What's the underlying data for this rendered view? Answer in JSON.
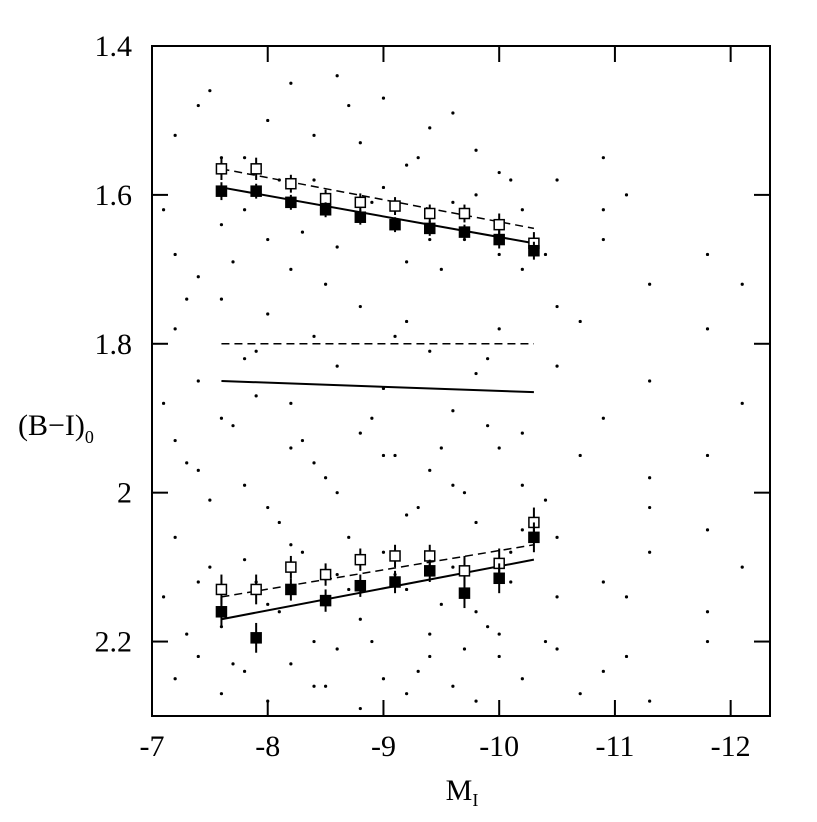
{
  "chart_data": {
    "type": "scatter",
    "xlabel": "M",
    "xlabel_sub": "I",
    "ylabel": "(B−I)",
    "ylabel_sub": "0",
    "xlim": [
      -7,
      -12.34
    ],
    "ylim": [
      2.3,
      1.4
    ],
    "xticks": [
      -7,
      -8,
      -9,
      -10,
      -11,
      -12
    ],
    "yticks": [
      1.4,
      1.6,
      1.8,
      2,
      2.2
    ],
    "points": {
      "color": "#000000",
      "x": [
        -7.2,
        -7.4,
        -7.6,
        -7.8,
        -8.0,
        -8.2,
        -8.4,
        -8.6,
        -8.8,
        -9.0,
        -9.2,
        -9.4,
        -9.6,
        -9.8,
        -10.0,
        -10.2,
        -10.5,
        -10.9,
        -11.3,
        -11.8,
        -7.2,
        -7.4,
        -7.6,
        -7.8,
        -8.0,
        -8.2,
        -8.4,
        -8.6,
        -8.8,
        -9.0,
        -9.2,
        -9.4,
        -9.6,
        -9.8,
        -10.0,
        -10.2,
        -10.5,
        -10.9,
        -11.3,
        -11.8,
        -7.2,
        -7.4,
        -7.6,
        -7.8,
        -8.0,
        -8.2,
        -8.4,
        -8.6,
        -8.8,
        -9.0,
        -9.2,
        -9.4,
        -9.6,
        -9.8,
        -10.0,
        -10.2,
        -10.5,
        -10.9,
        -11.3,
        -11.8,
        -7.2,
        -7.4,
        -7.6,
        -7.8,
        -8.0,
        -8.2,
        -8.4,
        -8.6,
        -8.8,
        -9.0,
        -9.2,
        -9.4,
        -9.6,
        -9.8,
        -10.0,
        -10.2,
        -10.5,
        -10.9,
        -11.3,
        -11.8,
        -7.2,
        -7.4,
        -7.6,
        -7.8,
        -8.0,
        -8.2,
        -8.4,
        -8.6,
        -8.8,
        -9.0,
        -9.2,
        -9.4,
        -9.6,
        -9.8,
        -10.0,
        -10.2,
        -10.5,
        -10.9,
        -11.3,
        -11.8,
        -7.2,
        -7.4,
        -7.6,
        -7.8,
        -8.0,
        -8.2,
        -8.4,
        -8.6,
        -8.8,
        -9.0,
        -9.2,
        -9.4,
        -9.6,
        -9.8,
        -10.0,
        -10.2,
        -10.5,
        -10.9,
        -11.3,
        -11.8,
        -7.1,
        -7.3,
        -7.5,
        -7.7,
        -7.9,
        -8.1,
        -8.3,
        -8.5,
        -8.7,
        -8.9,
        -9.1,
        -9.3,
        -9.5,
        -9.7,
        -9.9,
        -10.1,
        -10.4,
        -10.7,
        -11.1,
        -12.1,
        -7.1,
        -7.3,
        -7.5,
        -7.7,
        -7.9,
        -8.1,
        -8.3,
        -8.5,
        -8.7,
        -8.9,
        -9.1,
        -9.3,
        -9.5,
        -9.7,
        -9.9,
        -10.1,
        -10.4,
        -10.7,
        -11.1,
        -12.1,
        -7.1,
        -7.3,
        -7.5,
        -7.7,
        -7.9,
        -8.1,
        -8.3,
        -8.5,
        -8.7,
        -8.9,
        -9.1,
        -9.3,
        -9.5,
        -9.7,
        -9.9,
        -10.1,
        -10.4,
        -10.7,
        -11.1,
        -12.1
      ],
      "y": [
        1.52,
        1.48,
        1.55,
        1.62,
        1.5,
        1.45,
        1.58,
        1.44,
        1.53,
        1.47,
        1.56,
        1.51,
        1.49,
        1.6,
        1.57,
        1.62,
        1.58,
        1.66,
        1.72,
        1.68,
        1.68,
        1.71,
        1.64,
        1.55,
        1.66,
        1.7,
        1.52,
        1.67,
        1.63,
        1.59,
        1.69,
        1.66,
        1.61,
        1.54,
        1.68,
        1.7,
        1.75,
        1.55,
        1.85,
        1.95,
        1.78,
        1.85,
        1.74,
        1.82,
        1.76,
        1.88,
        1.79,
        1.83,
        1.75,
        1.86,
        1.77,
        1.81,
        1.89,
        1.84,
        1.78,
        1.92,
        1.83,
        1.9,
        1.98,
        2.05,
        1.93,
        1.97,
        1.9,
        1.99,
        2.02,
        1.94,
        1.96,
        2.0,
        1.92,
        1.95,
        2.03,
        1.97,
        1.99,
        2.04,
        1.94,
        1.99,
        2.06,
        2.12,
        2.08,
        1.78,
        2.06,
        2.12,
        2.18,
        2.09,
        2.15,
        2.07,
        2.2,
        2.11,
        2.17,
        2.08,
        2.13,
        2.19,
        2.1,
        2.16,
        2.22,
        2.05,
        2.14,
        2.24,
        2.02,
        2.16,
        2.25,
        2.22,
        2.27,
        2.24,
        2.28,
        2.23,
        2.26,
        2.21,
        2.29,
        2.25,
        2.27,
        2.22,
        2.26,
        2.28,
        2.19,
        2.25,
        2.21,
        1.62,
        2.28,
        2.2,
        1.62,
        1.74,
        1.46,
        1.69,
        1.81,
        1.58,
        1.65,
        1.72,
        1.48,
        1.61,
        1.79,
        1.55,
        1.7,
        1.66,
        1.82,
        1.58,
        1.68,
        1.77,
        1.6,
        1.88,
        1.88,
        1.96,
        2.01,
        1.91,
        1.87,
        2.04,
        1.93,
        1.98,
        2.06,
        1.9,
        1.95,
        2.02,
        1.94,
        2.0,
        1.91,
        2.08,
        2.01,
        1.95,
        2.14,
        2.1,
        2.14,
        2.19,
        2.1,
        2.23,
        2.12,
        2.16,
        2.08,
        2.26,
        2.13,
        2.2,
        2.11,
        2.24,
        2.15,
        2.21,
        2.18,
        2.12,
        2.2,
        2.27,
        2.22,
        1.72
      ]
    },
    "bins": [
      {
        "marker": "open",
        "x": [
          -7.6,
          -7.9,
          -8.2,
          -8.5,
          -8.8,
          -9.1,
          -9.4,
          -9.7,
          -10.0,
          -10.3
        ],
        "values": [
          1.565,
          1.565,
          1.585,
          1.605,
          1.61,
          1.615,
          1.625,
          1.625,
          1.64,
          1.665
        ],
        "errors": [
          0.015,
          0.015,
          0.012,
          0.012,
          0.012,
          0.012,
          0.012,
          0.012,
          0.015,
          0.015
        ]
      },
      {
        "marker": "filled",
        "x": [
          -7.6,
          -7.9,
          -8.2,
          -8.5,
          -8.8,
          -9.1,
          -9.4,
          -9.7,
          -10.0,
          -10.3
        ],
        "values": [
          1.595,
          1.595,
          1.61,
          1.62,
          1.63,
          1.64,
          1.645,
          1.65,
          1.66,
          1.675
        ],
        "errors": [
          0.012,
          0.01,
          0.01,
          0.01,
          0.01,
          0.01,
          0.01,
          0.01,
          0.012,
          0.012
        ]
      },
      {
        "marker": "open",
        "x": [
          -7.6,
          -7.9,
          -8.2,
          -8.5,
          -8.8,
          -9.1,
          -9.4,
          -9.7,
          -10.0,
          -10.3
        ],
        "values": [
          2.13,
          2.13,
          2.1,
          2.11,
          2.09,
          2.085,
          2.085,
          2.105,
          2.095,
          2.04
        ],
        "errors": [
          0.02,
          0.02,
          0.015,
          0.015,
          0.015,
          0.015,
          0.015,
          0.02,
          0.02,
          0.02
        ]
      },
      {
        "marker": "filled",
        "x": [
          -7.6,
          -7.9,
          -8.2,
          -8.5,
          -8.8,
          -9.1,
          -9.4,
          -9.7,
          -10.0,
          -10.3
        ],
        "values": [
          2.16,
          2.195,
          2.13,
          2.145,
          2.125,
          2.12,
          2.105,
          2.135,
          2.115,
          2.06
        ],
        "errors": [
          0.02,
          0.02,
          0.015,
          0.015,
          0.015,
          0.015,
          0.015,
          0.02,
          0.02,
          0.02
        ]
      }
    ],
    "fits": [
      {
        "dashed": true,
        "x": [
          -7.6,
          -10.3
        ],
        "y": [
          1.565,
          1.645
        ]
      },
      {
        "dashed": false,
        "x": [
          -7.6,
          -10.3
        ],
        "y": [
          1.59,
          1.665
        ]
      },
      {
        "dashed": true,
        "x": [
          -7.6,
          -10.3
        ],
        "y": [
          1.8,
          1.8
        ]
      },
      {
        "dashed": false,
        "x": [
          -7.6,
          -10.3
        ],
        "y": [
          1.85,
          1.865
        ]
      },
      {
        "dashed": true,
        "x": [
          -7.6,
          -10.3
        ],
        "y": [
          2.14,
          2.07
        ]
      },
      {
        "dashed": false,
        "x": [
          -7.6,
          -10.3
        ],
        "y": [
          2.17,
          2.09
        ]
      }
    ]
  }
}
